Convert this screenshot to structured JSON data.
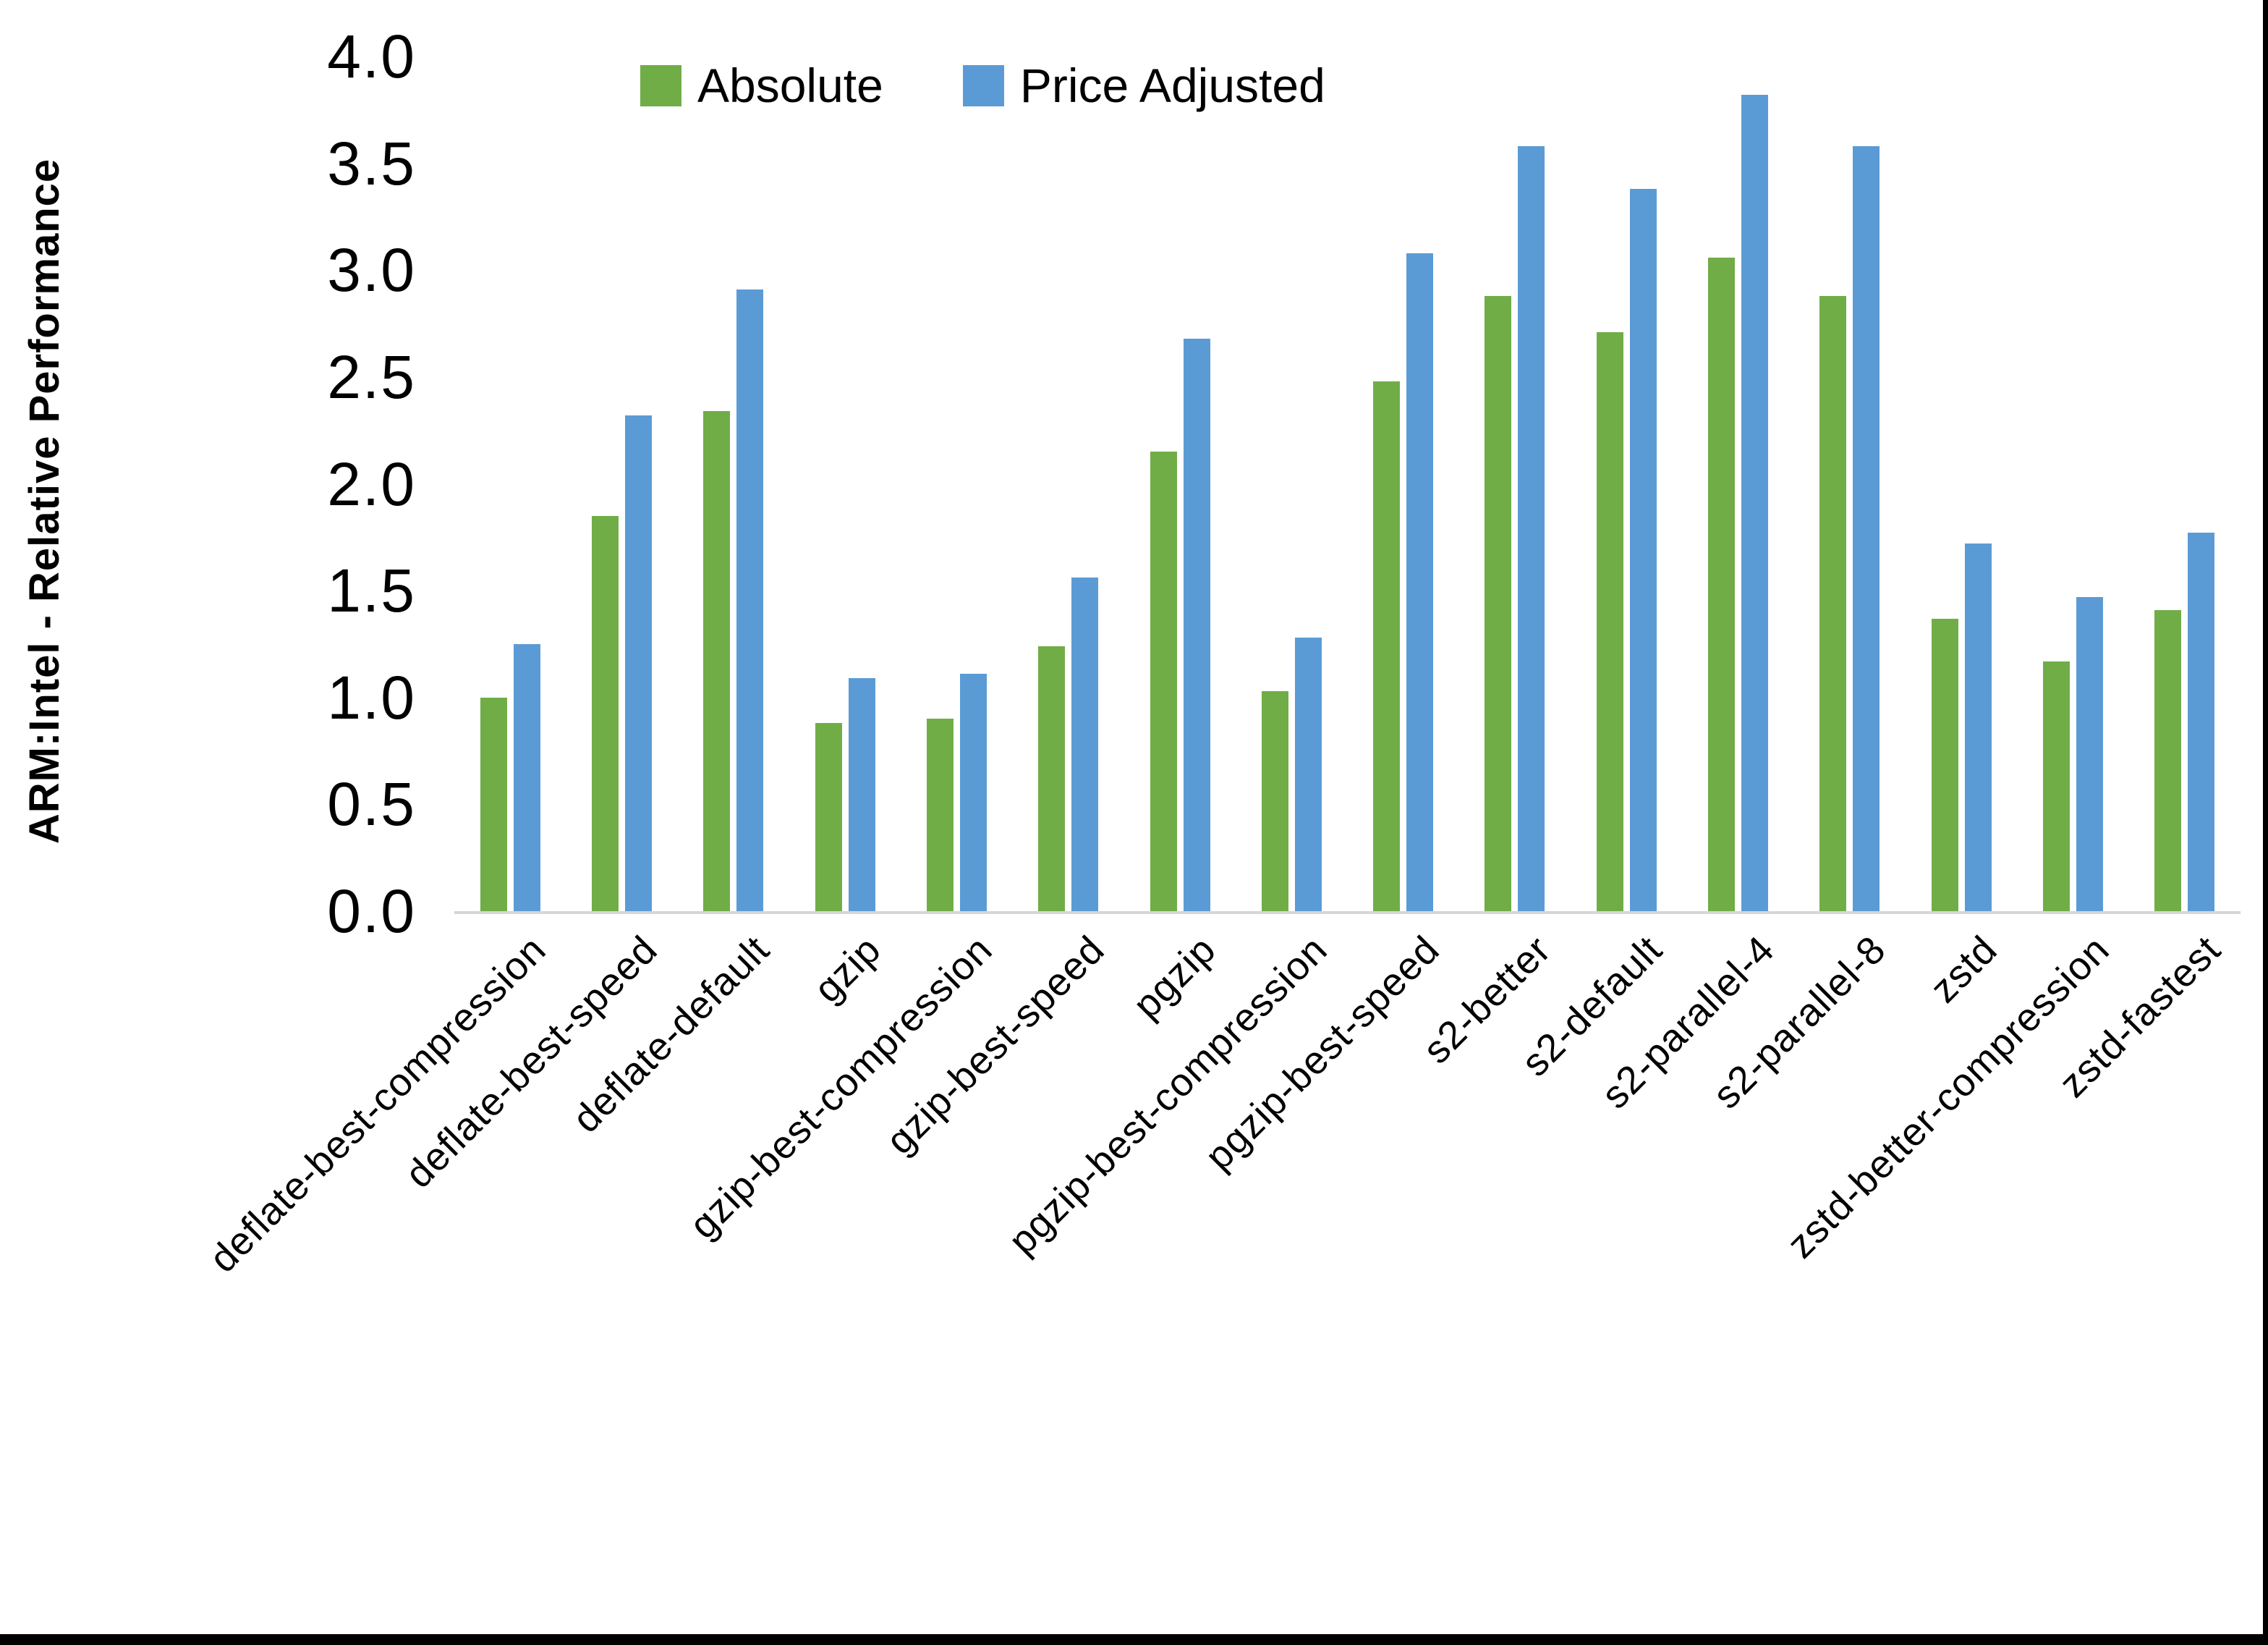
{
  "window": {
    "background": "#ffffff",
    "border_color": "#000000"
  },
  "chart_data": {
    "type": "bar",
    "title": "",
    "xlabel": "",
    "ylabel": "ARM:Intel - Relative Performance",
    "ylim": [
      0.0,
      4.0
    ],
    "ytick_step": 0.5,
    "yticks": [
      "0.0",
      "0.5",
      "1.0",
      "1.5",
      "2.0",
      "2.5",
      "3.0",
      "3.5",
      "4.0"
    ],
    "grid": false,
    "legend_position": "top-center",
    "axis_line_color": "#d6d6d6",
    "text_color": "#000000",
    "categories": [
      "deflate-best-compression",
      "deflate-best-speed",
      "deflate-default",
      "gzip",
      "gzip-best-compression",
      "gzip-best-speed",
      "pgzip",
      "pgzip-best-compression",
      "pgzip-best-speed",
      "s2-better",
      "s2-default",
      "s2-parallel-4",
      "s2-parallel-8",
      "zstd",
      "zstd-better-compression",
      "zstd-fastest"
    ],
    "series": [
      {
        "name": "Absolute",
        "color": "#70AD47",
        "values": [
          1.0,
          1.85,
          2.34,
          0.88,
          0.9,
          1.24,
          2.15,
          1.03,
          2.48,
          2.88,
          2.71,
          3.06,
          2.88,
          1.37,
          1.17,
          1.41
        ]
      },
      {
        "name": "Price Adjusted",
        "color": "#5B9BD5",
        "values": [
          1.25,
          2.32,
          2.91,
          1.09,
          1.11,
          1.56,
          2.68,
          1.28,
          3.08,
          3.58,
          3.38,
          3.82,
          3.58,
          1.72,
          1.47,
          1.77
        ]
      }
    ]
  }
}
